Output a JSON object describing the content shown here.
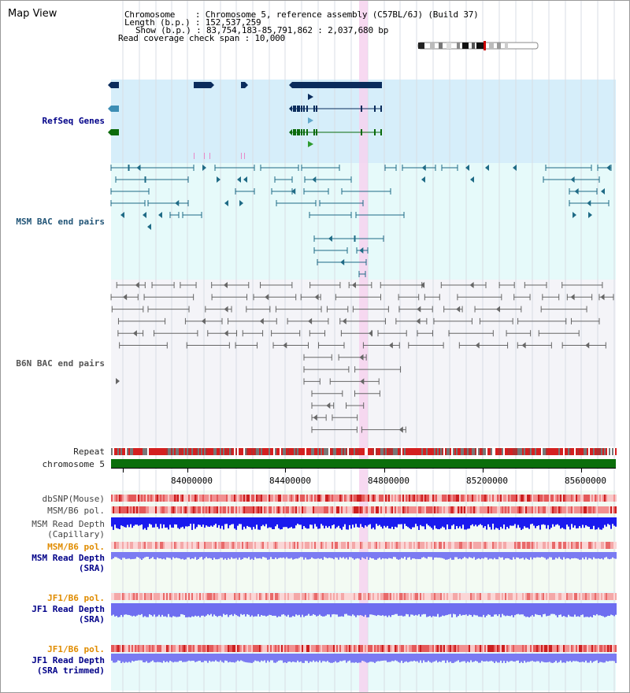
{
  "view": {
    "title": "Map View"
  },
  "header": {
    "chromosome_label": "Chromosome",
    "chromosome_value": "Chromosome 5, reference assembly (C57BL/6J) (Build 37)",
    "length_label": "Length (b.p.)",
    "length_value": "152,537,259",
    "show_label": "Show (b.p.)",
    "show_value": "83,754,183-85,791,862 : 2,037,680 bp",
    "coverage_label": "Read coverage check span",
    "coverage_value": "10,000"
  },
  "tracks": {
    "refseq": "RefSeq Genes",
    "msm_bac": "MSM BAC end pairs",
    "b6n_bac": "B6N BAC end pairs",
    "repeat": "Repeat",
    "chromosome": "chromosome 5",
    "dbsnp": "dbSNP(Mouse)",
    "msm_b6_pol_1": "MSM/B6 pol.",
    "msm_depth_cap_1": "MSM Read Depth",
    "msm_depth_cap_2": "(Capillary)",
    "msm_b6_pol_2": "MSM/B6 pol.",
    "msm_depth_sra_1": "MSM Read Depth",
    "msm_depth_sra_2": "(SRA)",
    "jf1_b6_pol_1": "JF1/B6 pol.",
    "jf1_depth_sra_1": "JF1 Read Depth",
    "jf1_depth_sra_2": "(SRA)",
    "jf1_b6_pol_2": "JF1/B6 pol.",
    "jf1_depth_trim_1": "JF1 Read Depth",
    "jf1_depth_trim_2": "(SRA trimmed)"
  },
  "axis": {
    "ticks": [
      "84000000",
      "84400000",
      "84800000",
      "85200000",
      "85600000"
    ]
  },
  "colors": {
    "refseq_bg": "#d6eefa",
    "bac_bg": "#e6fafa",
    "b6n_bg": "#f4f4f8",
    "highlight": "#f6d2ee",
    "gene_dark": "#0b2c5c",
    "gene_green": "#0b6b0b",
    "bac_line": "#1f6b86",
    "b6n_line": "#555555",
    "chromosome_bar": "#0b6e0b",
    "depth_blue": "#1a1aee",
    "depth_light": "#7373f0",
    "pol_red": "#e03030",
    "label_blue": "#000088",
    "label_orange": "#e08c00"
  }
}
